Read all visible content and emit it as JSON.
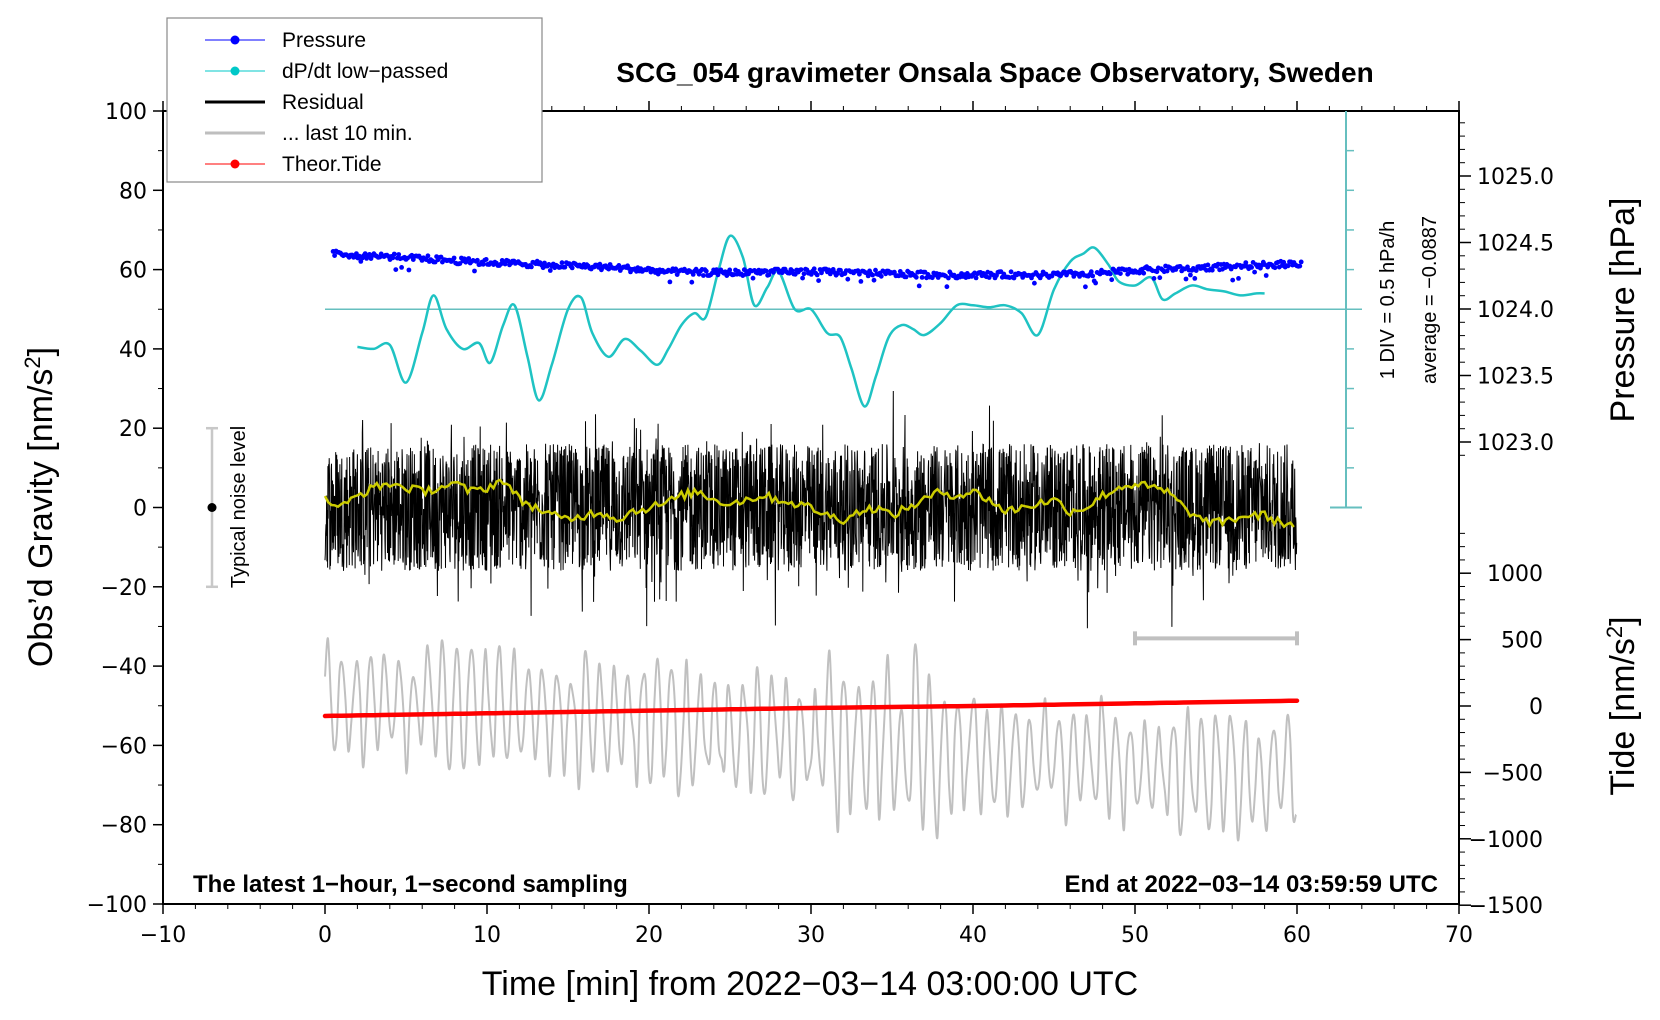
{
  "chart_data": {
    "type": "line",
    "title": "SCG_054 gravimeter Onsala Space Observatory, Sweden",
    "xlabel": "Time [min] from 2022−03−14 03:00:00 UTC",
    "ylabel": "Obs’d Gravity [nm/s²]",
    "ylabel_right_top": "Pressure [hPa]",
    "ylabel_right_bottom": "Tide [nm/s²]",
    "xlim": [
      -10,
      70
    ],
    "ylim": [
      -100,
      100
    ],
    "x_ticks": [
      "−10",
      "0",
      "10",
      "20",
      "30",
      "40",
      "50",
      "60",
      "70"
    ],
    "x_tick_values": [
      -10,
      0,
      10,
      20,
      30,
      40,
      50,
      60,
      70
    ],
    "y_ticks": [
      "100",
      "80",
      "60",
      "40",
      "20",
      "0",
      "−20",
      "−40",
      "−60",
      "−80",
      "−100"
    ],
    "y_tick_values": [
      100,
      80,
      60,
      40,
      20,
      0,
      -20,
      -40,
      -60,
      -80,
      -100
    ],
    "pressure_axis": {
      "ticks": [
        "1025.0",
        "1024.5",
        "1024.0",
        "1023.5",
        "1023.0"
      ],
      "tick_values": [
        1025.0,
        1024.5,
        1024.0,
        1023.5,
        1023.0
      ],
      "gravity_equivalent": {
        "1024.0": 50,
        "1025.0": 85.5
      }
    },
    "tide_axis": {
      "ticks": [
        "1000",
        "500",
        "0",
        "−500",
        "−1000",
        "−1500"
      ],
      "tick_values": [
        1000,
        500,
        0,
        -500,
        -1000,
        -1500
      ],
      "range": [
        -1500,
        2000
      ]
    },
    "dpdt_scale_label": "1 DIV = 0.5 hPa/h",
    "dpdt_average_label": "average = −0.0887",
    "dpdt_zero_level_gravity_units": 50,
    "noise_label": "Typical noise level",
    "noise_bar": {
      "x": -7,
      "center": 0,
      "range": [
        -20,
        20
      ]
    },
    "last10_bar": {
      "from": 50,
      "to": 60,
      "y": -33
    },
    "bottom_left_note": "The latest 1−hour, 1−second sampling",
    "bottom_right_note": "End at 2022−03−14 03:59:59 UTC",
    "legend": [
      {
        "label": "Pressure",
        "color": "#0000ff",
        "style": "line-dot"
      },
      {
        "label": "dP/dt low−passed",
        "color": "#00c8c8",
        "style": "line-dot"
      },
      {
        "label": "Residual",
        "color": "#000000",
        "style": "line-thick"
      },
      {
        "label": "... last 10 min.",
        "color": "#bebebe",
        "style": "line-thick"
      },
      {
        "label": "Theor.Tide",
        "color": "#ff0000",
        "style": "line-dot"
      }
    ],
    "legend_position": "top-left",
    "colors": {
      "pressure": "#0000ff",
      "dpdt": "#1fc3c3",
      "dpdt_axis": "#66bfbf",
      "residual": "#000000",
      "residual_smooth": "#cccc00",
      "last10": "#c0c0c0",
      "tide": "#ff0000",
      "noise_bar": "#c8c8c8"
    },
    "series": [
      {
        "name": "Pressure (plotted in gravity-axis units)",
        "x": [
          0.5,
          3,
          6,
          9,
          12,
          15,
          18,
          21,
          24,
          27,
          30,
          33,
          36,
          39,
          42,
          45,
          48,
          51,
          54,
          57,
          60
        ],
        "values": [
          64,
          63.5,
          62.8,
          62,
          61.5,
          61,
          60.5,
          59.5,
          59.2,
          59.3,
          59.5,
          59.2,
          58.8,
          58.6,
          58.7,
          58.6,
          59.2,
          60,
          60.5,
          61,
          61.5
        ]
      },
      {
        "name": "dP/dt low-passed (gravity-axis units)",
        "x": [
          2,
          3,
          4,
          5,
          6,
          6.7,
          7.5,
          8.5,
          9.5,
          10.2,
          11,
          11.7,
          12.5,
          13.2,
          14,
          15,
          15.8,
          16.5,
          17.5,
          18.5,
          19.5,
          20.5,
          21.2,
          22,
          22.8,
          23.5,
          24.3,
          25,
          25.8,
          26.5,
          27.3,
          28,
          29,
          30,
          31,
          31.8,
          32.5,
          33.3,
          34,
          34.8,
          35.6,
          36.3,
          37,
          38,
          39,
          40,
          41,
          42,
          43,
          44,
          45,
          46,
          46.8,
          47.5,
          48.4,
          49,
          50,
          51,
          51.7,
          52.5,
          53.5,
          54.5,
          55.5,
          56.5,
          57.5,
          58
        ],
        "values": [
          40.5,
          40,
          41,
          31.5,
          44,
          53.5,
          45,
          40,
          41.5,
          36.5,
          46,
          51,
          38,
          27,
          36,
          50,
          53,
          44,
          38,
          42.5,
          39.5,
          36,
          40,
          46,
          49,
          48,
          60,
          68.5,
          63,
          51,
          55.5,
          59.5,
          50,
          50,
          44,
          43,
          35,
          25.5,
          33,
          43,
          46,
          45,
          43.5,
          46.5,
          51,
          51,
          50.5,
          51,
          49,
          43.5,
          55,
          62,
          64,
          65.5,
          61,
          57,
          56,
          58,
          52.5,
          54,
          56,
          55,
          54.5,
          53.5,
          54,
          54
        ]
      },
      {
        "name": "Residual (1 s, envelope)",
        "x": [
          0,
          5,
          10,
          15,
          20,
          25,
          30,
          35,
          40,
          45,
          50,
          55,
          60
        ],
        "values": [
          0,
          0,
          0,
          0,
          0,
          0,
          0,
          0,
          0,
          0,
          0,
          0,
          0
        ],
        "amplitude_range": [
          -35,
          40
        ]
      },
      {
        "name": "Residual low-passed (yellow)",
        "x": [
          0,
          1,
          2,
          3,
          4,
          5,
          6,
          7,
          8,
          9,
          10,
          11,
          12,
          13,
          14,
          15,
          16,
          17,
          18,
          19,
          20,
          21,
          22,
          23,
          24,
          25,
          26,
          27,
          28,
          29,
          30,
          31,
          32,
          33,
          34,
          35,
          36,
          37,
          38,
          39,
          40,
          41,
          42,
          43,
          44,
          45,
          46,
          47,
          48,
          49,
          50,
          51,
          52,
          53,
          54,
          55,
          56,
          57,
          58,
          59,
          60
        ],
        "values": [
          2,
          0,
          3,
          5,
          6,
          5,
          4,
          5,
          6,
          4,
          5,
          7,
          2,
          0,
          -2,
          -3,
          -2,
          -1,
          -3,
          -1,
          0,
          1,
          3,
          4,
          2,
          1,
          2,
          3,
          2,
          1,
          0,
          -2,
          -3,
          -1,
          0,
          -2,
          0,
          2,
          4,
          3,
          4,
          2,
          -1,
          0,
          1,
          2,
          -1,
          0,
          3,
          5,
          6,
          5,
          4,
          0,
          -3,
          -4,
          -3,
          -2,
          -2,
          -4,
          -4
        ]
      },
      {
        "name": "... last 10 min. (grey, replotted across window)",
        "x": [
          0,
          60
        ],
        "values": [
          -48,
          -68
        ],
        "amplitude_range": [
          -94,
          -33
        ]
      },
      {
        "name": "Theor.Tide (tide-axis units nm/s²)",
        "x": [
          0,
          10,
          20,
          30,
          40,
          50,
          60
        ],
        "values": [
          -75,
          -55,
          -35,
          -15,
          0,
          20,
          40
        ]
      }
    ]
  }
}
